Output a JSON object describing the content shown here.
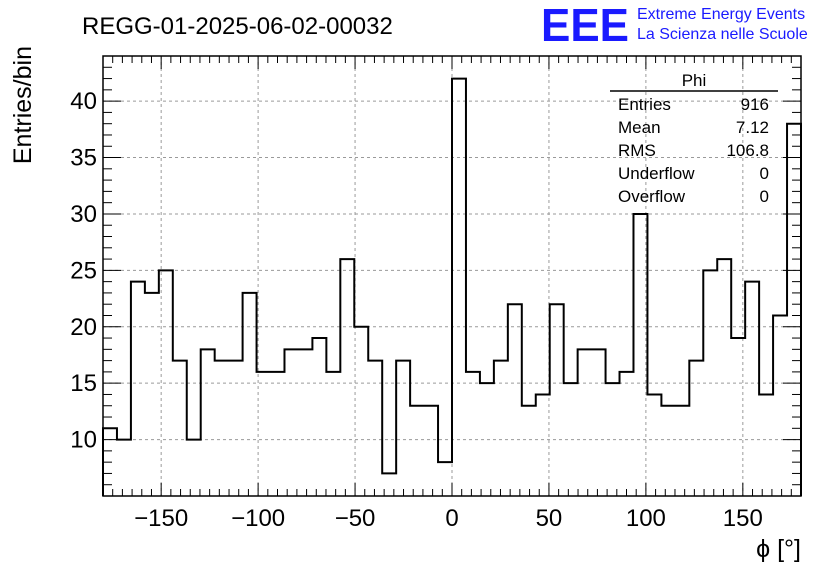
{
  "chart_data": {
    "type": "bar",
    "title": "REGG-01-2025-06-02-00032",
    "xlabel": "ϕ [°]",
    "ylabel": "Entries/bin",
    "xlim": [
      -180,
      180
    ],
    "ylim": [
      5,
      44
    ],
    "bin_width": 7.2,
    "x_ticks": [
      -150,
      -100,
      -50,
      0,
      50,
      100,
      150
    ],
    "y_ticks": [
      10,
      15,
      20,
      25,
      30,
      35,
      40
    ],
    "x_tick_labels": [
      "−150",
      "−100",
      "−50",
      "0",
      "50",
      "100",
      "150"
    ],
    "y_tick_labels": [
      "10",
      "15",
      "20",
      "25",
      "30",
      "35",
      "40"
    ],
    "grid": true,
    "series": [
      {
        "values": [
          11,
          10,
          24,
          23,
          25,
          17,
          10,
          18,
          17,
          17,
          23,
          16,
          16,
          18,
          18,
          19,
          16,
          26,
          20,
          17,
          7,
          17,
          13,
          13,
          8,
          42,
          16,
          15,
          17,
          22,
          13,
          14,
          22,
          15,
          18,
          18,
          15,
          16,
          30,
          14,
          13,
          13,
          17,
          25,
          26,
          19,
          24,
          14,
          21,
          38
        ],
        "color": "#000000"
      }
    ],
    "stats_box": {
      "title": "Phi",
      "rows": [
        {
          "label": "Entries",
          "value": "916"
        },
        {
          "label": "Mean",
          "value": "7.12"
        },
        {
          "label": "RMS",
          "value": "106.8"
        },
        {
          "label": "Underflow",
          "value": "0"
        },
        {
          "label": "Overflow",
          "value": "0"
        }
      ]
    }
  },
  "logo": {
    "text": "EEE",
    "line1": "Extreme Energy Events",
    "line2": "La Scienza nelle Scuole",
    "color": "#1a1aff"
  }
}
